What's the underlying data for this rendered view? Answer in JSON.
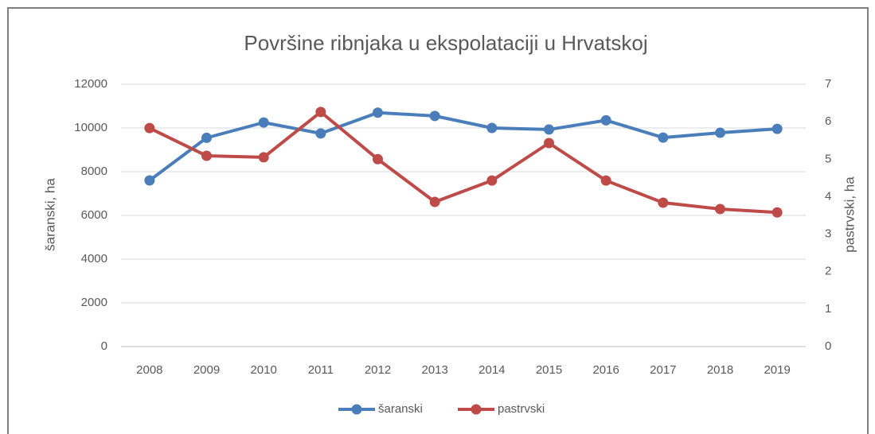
{
  "chart_data": {
    "type": "line",
    "title": "Površine ribnjaka u ekspolataciji u Hrvatskoj",
    "ylabel": "šaranski, ha",
    "y2label": "pastrvski, ha",
    "x": [
      2008,
      2009,
      2010,
      2011,
      2012,
      2013,
      2014,
      2015,
      2016,
      2017,
      2018,
      2019
    ],
    "series": [
      {
        "name": "šaranski",
        "color": "#4a7ebb",
        "values": [
          7600,
          9550,
          10250,
          9750,
          10700,
          10550,
          10000,
          9930,
          10350,
          9560,
          9780,
          9960
        ]
      },
      {
        "name": "pastrvski",
        "color": "#be4b48",
        "axis": "y2",
        "values": [
          5.83,
          5.09,
          5.05,
          6.26,
          5.0,
          3.86,
          4.43,
          5.43,
          4.43,
          3.84,
          3.67,
          3.58
        ]
      }
    ],
    "ylim": [
      0,
      12000
    ],
    "yticks": [
      0,
      2000,
      4000,
      6000,
      8000,
      10000,
      12000
    ],
    "y2lim": [
      0,
      7
    ],
    "y2ticks": [
      0,
      1,
      2,
      3,
      4,
      5,
      6,
      7
    ],
    "grid": true,
    "legend": "bottom"
  }
}
